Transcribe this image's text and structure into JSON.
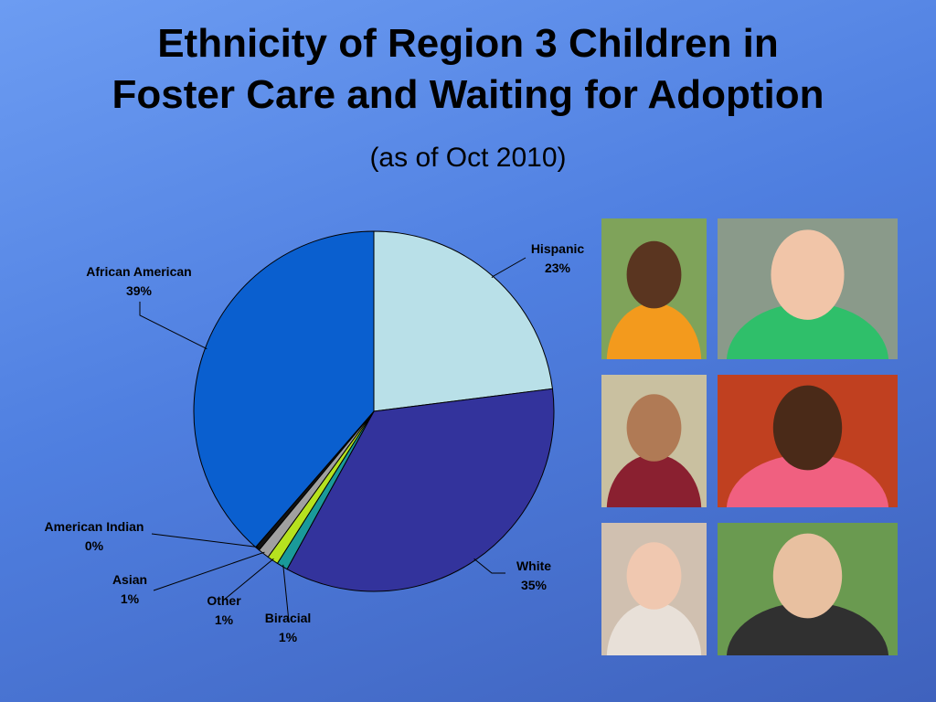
{
  "slide": {
    "title_line1": "Ethnicity of Region 3 Children in",
    "title_line2": "Foster Care and Waiting for Adoption",
    "subtitle": "(as of Oct 2010)"
  },
  "chart_data": {
    "type": "pie",
    "title": "Ethnicity of Region 3 Children in Foster Care and Waiting for Adoption",
    "subtitle": "(as of Oct 2010)",
    "start": "12 o'clock, clockwise",
    "slices": [
      {
        "label": "Hispanic",
        "value": 23,
        "value_label": "23%",
        "color": "#b9e0e8"
      },
      {
        "label": "White",
        "value": 35,
        "value_label": "35%",
        "color": "#33339c"
      },
      {
        "label": "Biracial",
        "value": 1,
        "value_label": "1%",
        "color": "#1a9a9a"
      },
      {
        "label": "Other",
        "value": 1,
        "value_label": "1%",
        "color": "#b6e21f"
      },
      {
        "label": "Asian",
        "value": 1,
        "value_label": "1%",
        "color": "#a0a0a0"
      },
      {
        "label": "American Indian",
        "value": 0.4,
        "value_label": "0%",
        "color": "#111111"
      },
      {
        "label": "African American",
        "value": 38.6,
        "value_label": "39%",
        "color": "#0a5fcf"
      }
    ]
  },
  "photos": [
    {
      "name": "photo-boy-orange-shirt",
      "shirt": "#f39a1d",
      "skin": "#5a3520",
      "bg": "#7fa35a"
    },
    {
      "name": "photo-boy-green-shirt",
      "shirt": "#2fbf6a",
      "skin": "#f1c5a8",
      "bg": "#8a9a8a"
    },
    {
      "name": "photo-boy-striped-shirt",
      "shirt": "#8a2030",
      "skin": "#b07a55",
      "bg": "#c9c0a0"
    },
    {
      "name": "photo-two-children-smiling",
      "shirt": "#f06080",
      "skin": "#4a2a18",
      "bg": "#c04020"
    },
    {
      "name": "photo-girl-red-hair",
      "shirt": "#e8e0d8",
      "skin": "#f0c8b0",
      "bg": "#d0c0b0"
    },
    {
      "name": "photo-three-siblings",
      "shirt": "#303030",
      "skin": "#e8c0a0",
      "bg": "#6a9a50"
    }
  ]
}
